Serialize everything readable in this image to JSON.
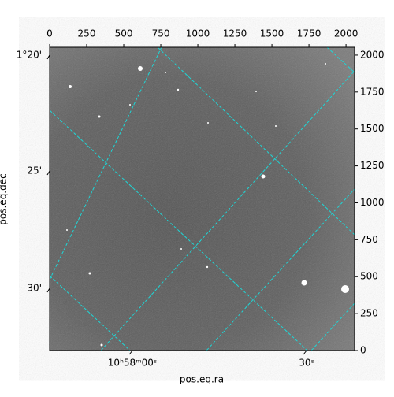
{
  "chart_data": {
    "type": "image",
    "xlabel": "pos.eq.ra",
    "ylabel": "pos.eq.dec",
    "xlim": [
      0,
      2058
    ],
    "ylim": [
      0,
      2053
    ],
    "xticks": [
      0,
      250,
      500,
      750,
      1000,
      1250,
      1500,
      1750,
      2000
    ],
    "yticks": [
      0,
      250,
      500,
      750,
      1000,
      1250,
      1500,
      1750,
      2000
    ],
    "ra_ticks": [
      {
        "value": 559,
        "label": "10ʰ58ᵐ00ˢ"
      },
      {
        "value": 1734,
        "label": "30ˢ"
      }
    ],
    "dec_ticks": [
      {
        "value": 2000,
        "label": "1°20'"
      },
      {
        "value": 1216,
        "label": "25'"
      },
      {
        "value": 421,
        "label": "30'"
      }
    ]
  }
}
